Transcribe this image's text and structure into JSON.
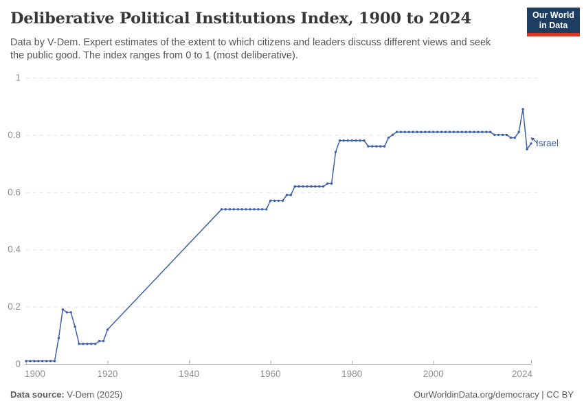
{
  "header": {
    "title": "Deliberative Political Institutions Index, 1900 to 2024",
    "subtitle_line1": "Data by V-Dem. Expert estimates of the extent to which citizens and leaders discuss different views and seek",
    "subtitle_line2": "the public good. The index ranges from 0 to 1 (most deliberative)."
  },
  "logo": {
    "line1": "Our World",
    "line2": "in Data",
    "bg_color": "#1d3d63",
    "stripe_color": "#dc3327"
  },
  "chart_data": {
    "type": "line",
    "title": "Deliberative Political Institutions Index, 1900 to 2024",
    "entity_label": "Israel",
    "line_color": "#3c5fa7",
    "grid_color": "#e2e2e2",
    "axis_color": "#a8a8a8",
    "tick_label_color": "#8e8e8e",
    "xlabel": "",
    "ylabel": "",
    "xlim": [
      1900,
      2024
    ],
    "ylim": [
      0,
      1
    ],
    "x_ticks": [
      1900,
      1920,
      1940,
      1960,
      1980,
      2000,
      2024
    ],
    "y_ticks": [
      0,
      0.2,
      0.4,
      0.6,
      0.8,
      1
    ],
    "y_tick_labels": [
      "0",
      "0.2",
      "0.4",
      "0.6",
      "0.8",
      "1"
    ],
    "legend_position": "end-of-line",
    "grid": "dashed-horizontal",
    "note": "No data points between 1921 and 1947; line interpolates between 1920 and 1948",
    "series": [
      {
        "name": "Israel",
        "points": [
          [
            1900,
            0.01
          ],
          [
            1901,
            0.01
          ],
          [
            1902,
            0.01
          ],
          [
            1903,
            0.01
          ],
          [
            1904,
            0.01
          ],
          [
            1905,
            0.01
          ],
          [
            1906,
            0.01
          ],
          [
            1907,
            0.01
          ],
          [
            1908,
            0.09
          ],
          [
            1909,
            0.19
          ],
          [
            1910,
            0.18
          ],
          [
            1911,
            0.18
          ],
          [
            1912,
            0.13
          ],
          [
            1913,
            0.07
          ],
          [
            1914,
            0.07
          ],
          [
            1915,
            0.07
          ],
          [
            1916,
            0.07
          ],
          [
            1917,
            0.07
          ],
          [
            1918,
            0.08
          ],
          [
            1919,
            0.08
          ],
          [
            1920,
            0.12
          ],
          [
            1948,
            0.54
          ],
          [
            1949,
            0.54
          ],
          [
            1950,
            0.54
          ],
          [
            1951,
            0.54
          ],
          [
            1952,
            0.54
          ],
          [
            1953,
            0.54
          ],
          [
            1954,
            0.54
          ],
          [
            1955,
            0.54
          ],
          [
            1956,
            0.54
          ],
          [
            1957,
            0.54
          ],
          [
            1958,
            0.54
          ],
          [
            1959,
            0.54
          ],
          [
            1960,
            0.57
          ],
          [
            1961,
            0.57
          ],
          [
            1962,
            0.57
          ],
          [
            1963,
            0.57
          ],
          [
            1964,
            0.59
          ],
          [
            1965,
            0.59
          ],
          [
            1966,
            0.62
          ],
          [
            1967,
            0.62
          ],
          [
            1968,
            0.62
          ],
          [
            1969,
            0.62
          ],
          [
            1970,
            0.62
          ],
          [
            1971,
            0.62
          ],
          [
            1972,
            0.62
          ],
          [
            1973,
            0.62
          ],
          [
            1974,
            0.63
          ],
          [
            1975,
            0.63
          ],
          [
            1976,
            0.74
          ],
          [
            1977,
            0.78
          ],
          [
            1978,
            0.78
          ],
          [
            1979,
            0.78
          ],
          [
            1980,
            0.78
          ],
          [
            1981,
            0.78
          ],
          [
            1982,
            0.78
          ],
          [
            1983,
            0.78
          ],
          [
            1984,
            0.76
          ],
          [
            1985,
            0.76
          ],
          [
            1986,
            0.76
          ],
          [
            1987,
            0.76
          ],
          [
            1988,
            0.76
          ],
          [
            1989,
            0.79
          ],
          [
            1990,
            0.8
          ],
          [
            1991,
            0.81
          ],
          [
            1992,
            0.81
          ],
          [
            1993,
            0.81
          ],
          [
            1994,
            0.81
          ],
          [
            1995,
            0.81
          ],
          [
            1996,
            0.81
          ],
          [
            1997,
            0.81
          ],
          [
            1998,
            0.81
          ],
          [
            1999,
            0.81
          ],
          [
            2000,
            0.81
          ],
          [
            2001,
            0.81
          ],
          [
            2002,
            0.81
          ],
          [
            2003,
            0.81
          ],
          [
            2004,
            0.81
          ],
          [
            2005,
            0.81
          ],
          [
            2006,
            0.81
          ],
          [
            2007,
            0.81
          ],
          [
            2008,
            0.81
          ],
          [
            2009,
            0.81
          ],
          [
            2010,
            0.81
          ],
          [
            2011,
            0.81
          ],
          [
            2012,
            0.81
          ],
          [
            2013,
            0.81
          ],
          [
            2014,
            0.81
          ],
          [
            2015,
            0.8
          ],
          [
            2016,
            0.8
          ],
          [
            2017,
            0.8
          ],
          [
            2018,
            0.8
          ],
          [
            2019,
            0.79
          ],
          [
            2020,
            0.79
          ],
          [
            2021,
            0.81
          ],
          [
            2022,
            0.89
          ],
          [
            2023,
            0.75
          ],
          [
            2024,
            0.77
          ]
        ]
      }
    ]
  },
  "footer": {
    "source_label": "Data source:",
    "source_text": " V-Dem (2025)",
    "right_text": "OurWorldinData.org/democracy | CC BY"
  }
}
